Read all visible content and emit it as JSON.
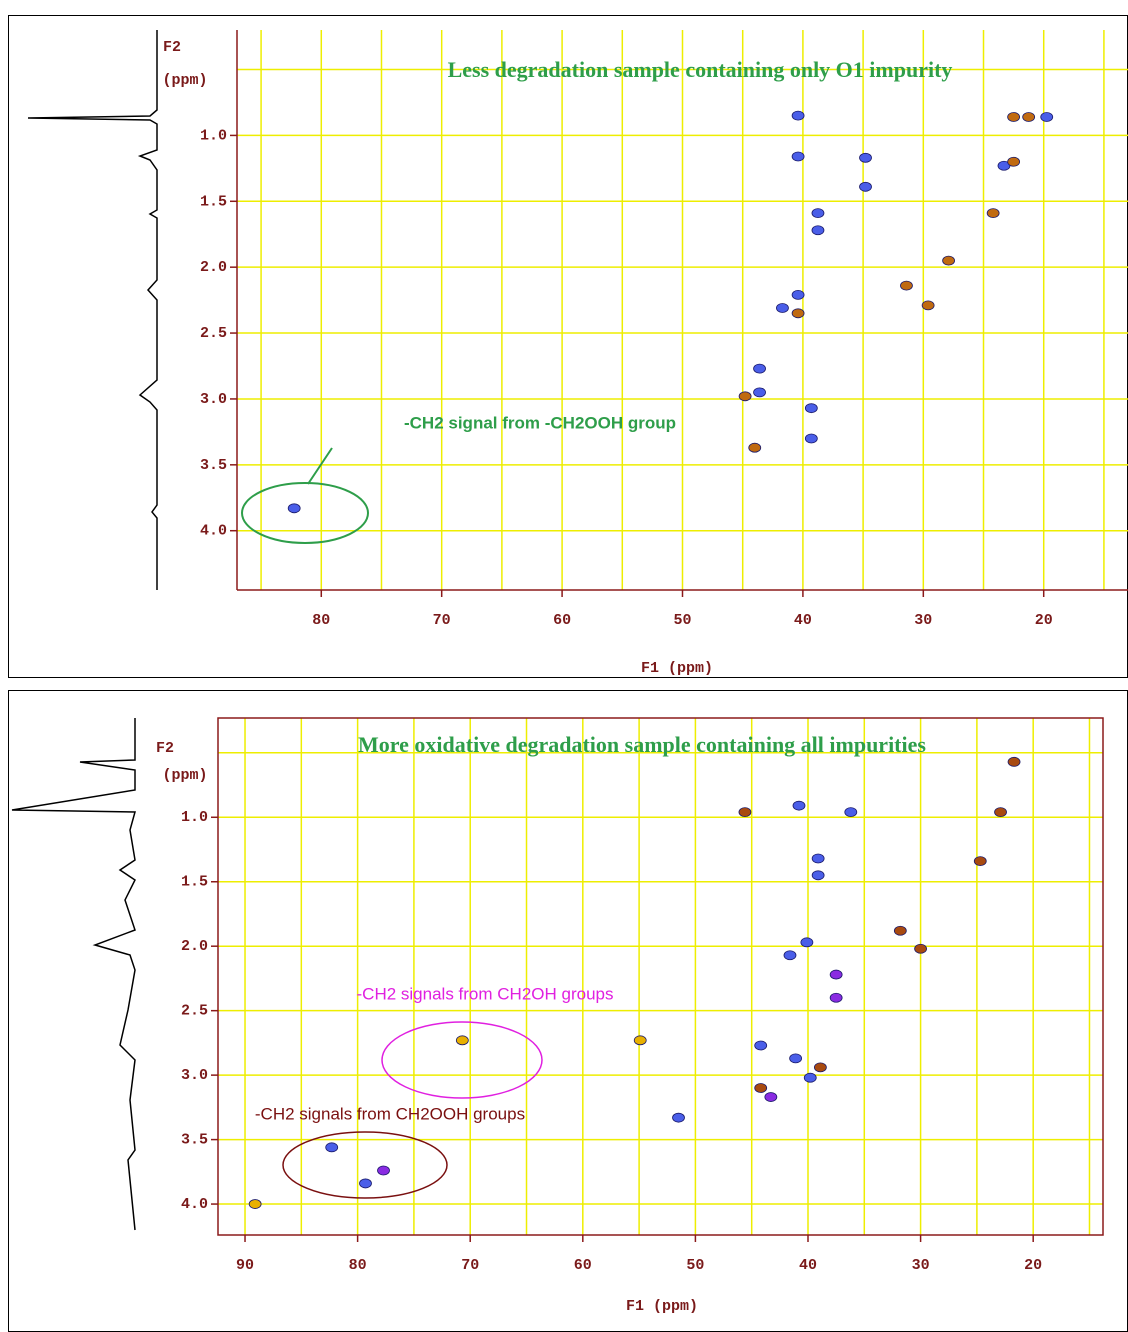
{
  "chart_data": [
    {
      "type": "scatter",
      "title": "Less degradation sample containing only O1 impurity",
      "title_color": "#2e9e4a",
      "xlabel": "F1 (ppm)",
      "ylabel": [
        "F2",
        "(ppm)"
      ],
      "xlim": [
        87,
        13
      ],
      "ylim": [
        4.45,
        0.2
      ],
      "xticks": [
        80,
        70,
        60,
        50,
        40,
        30,
        20
      ],
      "yticks": [
        {
          "value": 1,
          "label": "1.0"
        },
        1.5,
        {
          "value": 2,
          "label": "2.0"
        },
        2.5,
        {
          "value": 3,
          "label": "3.0"
        },
        3.5,
        {
          "value": 4,
          "label": "4.0"
        }
      ],
      "xgrid": [
        85,
        80,
        75,
        70,
        65,
        60,
        55,
        50,
        45,
        40,
        35,
        30,
        25,
        20,
        15
      ],
      "ygrid": [
        0.5,
        1,
        1.5,
        2,
        2.5,
        3,
        3.5,
        4
      ],
      "grid_color": "#eeee00",
      "annotations": [
        {
          "text": "-CH2 signal from -CH2OOH group",
          "color": "#2e9e4a"
        }
      ],
      "series": [
        {
          "color": "#4a5ee8",
          "x": [
            40.4,
            40.4,
            34.8,
            34.8,
            38.75,
            38.75,
            40.4,
            41.7,
            43.6,
            43.6,
            39.3,
            39.3,
            82.25,
            23.3,
            19.75
          ],
          "values": [
            0.85,
            1.16,
            1.17,
            1.39,
            1.59,
            1.72,
            2.21,
            2.31,
            2.77,
            2.95,
            3.07,
            3.3,
            3.83,
            1.23,
            0.86
          ]
        },
        {
          "color": "#c06a10",
          "x": [
            21.25,
            22.5,
            22.5,
            24.2,
            27.9,
            31.4,
            29.6,
            44.0,
            44.8,
            40.4
          ],
          "values": [
            0.86,
            0.86,
            1.2,
            1.59,
            1.95,
            2.14,
            2.29,
            3.37,
            2.98,
            2.35
          ]
        }
      ]
    },
    {
      "type": "scatter",
      "title": "More oxidative degradation sample containing all impurities",
      "title_color": "#2e9e4a",
      "xlabel": "F1 (ppm)",
      "ylabel": [
        "F2",
        "(ppm)"
      ],
      "xlim": [
        92.4,
        13.8
      ],
      "ylim": [
        4.24,
        0.23
      ],
      "xticks": [
        90,
        80,
        70,
        60,
        50,
        40,
        30,
        20
      ],
      "yticks": [
        {
          "value": 1,
          "label": "1.0"
        },
        1.5,
        {
          "value": 2,
          "label": "2.0"
        },
        2.5,
        {
          "value": 3,
          "label": "3.0"
        },
        3.5,
        {
          "value": 4,
          "label": "4.0"
        }
      ],
      "xgrid": [
        90,
        85,
        80,
        75,
        70,
        65,
        60,
        55,
        50,
        45,
        40,
        35,
        30,
        25,
        20,
        15
      ],
      "ygrid": [
        0.5,
        1,
        1.5,
        2,
        2.5,
        3,
        3.5,
        4
      ],
      "grid_color": "#eeee00",
      "annotations": [
        {
          "text": "-CH2 signals from CH2OH groups",
          "color": "#e020e0"
        },
        {
          "text": "-CH2 signals from CH2OOH groups",
          "color": "#7a1010"
        }
      ],
      "series": [
        {
          "color": "#4a5ee8",
          "x": [
            40.8,
            39.1,
            39.1,
            41.6,
            40.1,
            44.2,
            41.1,
            39.8,
            82.3,
            79.3,
            51.5,
            36.2
          ],
          "values": [
            0.91,
            1.32,
            1.45,
            2.07,
            1.97,
            2.77,
            2.87,
            3.02,
            3.56,
            3.84,
            3.33,
            0.96
          ]
        },
        {
          "color": "#a84a10",
          "x": [
            21.7,
            31.8,
            30.0,
            45.6,
            38.9,
            44.2,
            24.7,
            22.9
          ],
          "values": [
            0.57,
            1.88,
            2.02,
            0.96,
            2.94,
            3.1,
            1.34,
            0.96
          ]
        },
        {
          "color": "#8a2be2",
          "x": [
            77.7,
            37.5,
            37.5,
            43.3
          ],
          "values": [
            3.74,
            2.22,
            2.4,
            3.17
          ]
        },
        {
          "color": "#e8b000",
          "x": [
            70.7,
            54.9,
            89.1
          ],
          "values": [
            2.73,
            2.73,
            4.0
          ]
        }
      ]
    }
  ]
}
